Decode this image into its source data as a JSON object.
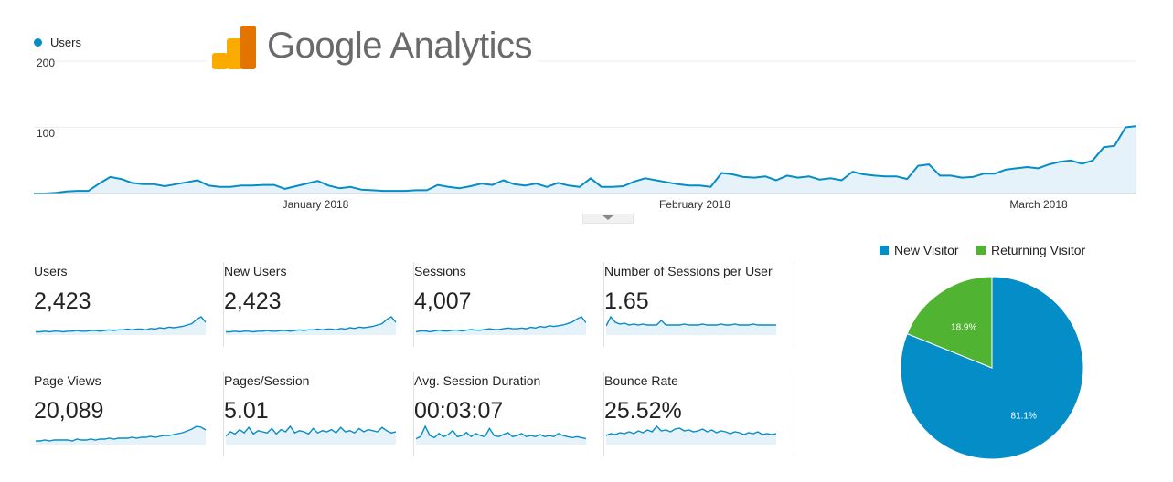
{
  "logo": {
    "text": "Google Analytics"
  },
  "chart_data": [
    {
      "type": "area",
      "series": [
        {
          "name": "Users",
          "color": "#058dc7",
          "values": [
            0,
            0,
            1,
            3,
            4,
            4,
            15,
            25,
            22,
            16,
            14,
            14,
            11,
            14,
            17,
            20,
            12,
            10,
            10,
            12,
            12,
            13,
            13,
            7,
            11,
            15,
            19,
            12,
            8,
            10,
            6,
            5,
            4,
            4,
            4,
            5,
            5,
            13,
            10,
            8,
            11,
            15,
            13,
            20,
            14,
            12,
            15,
            10,
            16,
            12,
            10,
            23,
            10,
            10,
            11,
            18,
            23,
            20,
            17,
            14,
            12,
            12,
            10,
            31,
            29,
            25,
            24,
            26,
            20,
            27,
            24,
            26,
            21,
            23,
            20,
            33,
            29,
            27,
            26,
            26,
            22,
            42,
            44,
            27,
            27,
            24,
            25,
            30,
            30,
            36,
            38,
            40,
            38,
            44,
            48,
            50,
            45,
            50,
            70,
            72,
            100,
            102
          ]
        }
      ],
      "yticks": [
        100,
        200
      ],
      "ylim": [
        0,
        200
      ],
      "xticks": [
        {
          "label": "January 2018",
          "index": 26
        },
        {
          "label": "February 2018",
          "index": 54
        },
        {
          "label": "March 2018",
          "index": 81
        }
      ]
    },
    {
      "type": "pie",
      "slices": [
        {
          "name": "New Visitor",
          "value": 81.1,
          "label": "81.1%",
          "color": "#058dc7"
        },
        {
          "name": "Returning Visitor",
          "value": 18.9,
          "label": "18.9%",
          "color": "#50b432"
        }
      ],
      "legend_position": "top"
    }
  ],
  "metrics": [
    {
      "label": "Users",
      "value": "2,423",
      "spark": [
        2,
        2,
        3,
        2,
        3,
        3,
        2,
        3,
        3,
        4,
        3,
        3,
        4,
        4,
        3,
        4,
        5,
        4,
        5,
        5,
        6,
        5,
        6,
        6,
        5,
        7,
        6,
        8,
        7,
        9,
        8,
        9,
        10,
        12,
        14,
        20,
        24,
        16
      ]
    },
    {
      "label": "New Users",
      "value": "2,423",
      "spark": [
        2,
        2,
        3,
        2,
        3,
        3,
        2,
        3,
        3,
        4,
        3,
        3,
        4,
        4,
        3,
        4,
        5,
        4,
        5,
        5,
        6,
        5,
        6,
        6,
        5,
        7,
        6,
        8,
        7,
        9,
        8,
        9,
        10,
        12,
        14,
        20,
        24,
        16
      ]
    },
    {
      "label": "Sessions",
      "value": "4,007",
      "spark": [
        2,
        3,
        3,
        2,
        3,
        4,
        3,
        3,
        4,
        4,
        3,
        4,
        5,
        4,
        4,
        5,
        6,
        5,
        5,
        6,
        7,
        6,
        6,
        7,
        6,
        8,
        7,
        9,
        8,
        10,
        9,
        10,
        11,
        13,
        15,
        19,
        22,
        14
      ]
    },
    {
      "label": "Number of Sessions per User",
      "value": "1.65",
      "spark": [
        8,
        18,
        12,
        10,
        11,
        9,
        10,
        9,
        10,
        9,
        9,
        9,
        14,
        9,
        9,
        9,
        9,
        10,
        9,
        9,
        9,
        10,
        9,
        9,
        9,
        10,
        9,
        9,
        10,
        9,
        9,
        9,
        10,
        9,
        9,
        9,
        9,
        9
      ]
    },
    {
      "label": "Page Views",
      "value": "20,089",
      "spark": [
        2,
        2,
        3,
        2,
        3,
        3,
        3,
        3,
        2,
        4,
        3,
        3,
        4,
        3,
        4,
        4,
        5,
        4,
        5,
        5,
        5,
        6,
        5,
        6,
        6,
        7,
        6,
        7,
        8,
        8,
        9,
        10,
        11,
        13,
        15,
        18,
        17,
        14
      ]
    },
    {
      "label": "Pages/Session",
      "value": "5.01",
      "spark": [
        6,
        10,
        8,
        12,
        9,
        14,
        8,
        11,
        10,
        9,
        13,
        8,
        12,
        10,
        15,
        9,
        11,
        10,
        8,
        13,
        9,
        11,
        10,
        12,
        9,
        14,
        10,
        11,
        9,
        13,
        10,
        12,
        11,
        10,
        14,
        11,
        9,
        10
      ]
    },
    {
      "label": "Avg. Session Duration",
      "value": "00:03:07",
      "spark": [
        4,
        6,
        16,
        7,
        5,
        9,
        6,
        8,
        12,
        6,
        7,
        10,
        6,
        9,
        7,
        6,
        14,
        7,
        6,
        8,
        10,
        6,
        7,
        9,
        6,
        7,
        6,
        8,
        6,
        7,
        6,
        9,
        7,
        6,
        5,
        6,
        5,
        4
      ]
    },
    {
      "label": "Bounce Rate",
      "value": "25.52%",
      "spark": [
        8,
        10,
        9,
        11,
        10,
        12,
        10,
        13,
        11,
        14,
        12,
        18,
        13,
        14,
        12,
        15,
        16,
        13,
        14,
        12,
        13,
        15,
        12,
        14,
        11,
        13,
        12,
        10,
        12,
        11,
        9,
        11,
        10,
        12,
        9,
        10,
        9,
        10
      ]
    }
  ]
}
